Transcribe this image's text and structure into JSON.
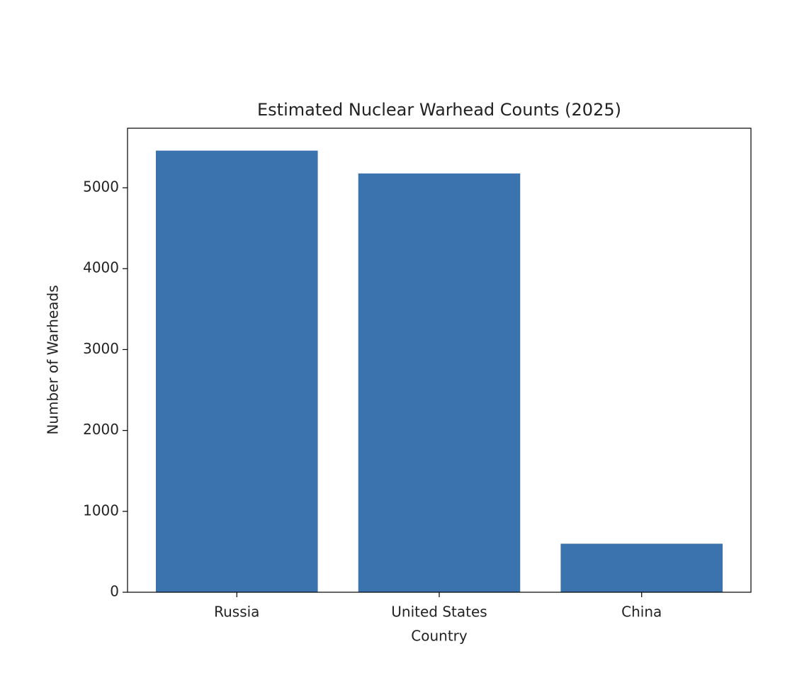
{
  "chart_data": {
    "type": "bar",
    "title": "Estimated Nuclear Warhead Counts (2025)",
    "x_label": "Country",
    "y_label": "Number of Warheads",
    "categories": [
      "Russia",
      "United States",
      "China"
    ],
    "values": [
      5459,
      5177,
      600
    ],
    "color": "#3a73ad",
    "ylim": [
      0,
      5736
    ],
    "yticks": [
      0,
      1000,
      2000,
      3000,
      4000,
      5000
    ],
    "grid": false
  }
}
